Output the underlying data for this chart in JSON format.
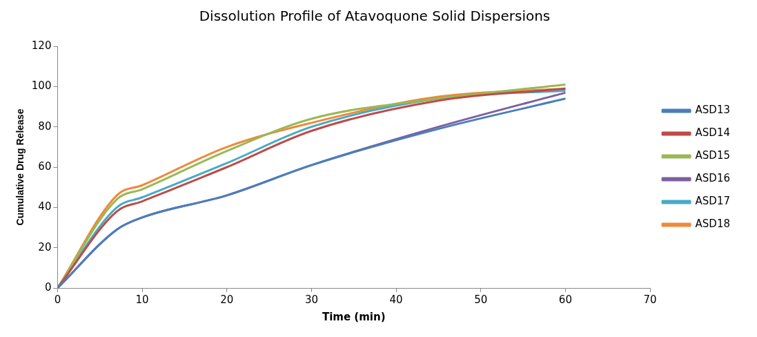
{
  "chart_data": {
    "type": "line",
    "title": "Dissolution Profile of Atavoquone Solid Dispersions",
    "xlabel": "Time (min)",
    "ylabel": "Cumulative Drug Release",
    "x": [
      0,
      7,
      10,
      20,
      30,
      45,
      60
    ],
    "xlim": [
      0,
      70
    ],
    "xticks": [
      0,
      10,
      20,
      30,
      40,
      50,
      60,
      70
    ],
    "ylim": [
      0,
      120
    ],
    "yticks": [
      0,
      20,
      40,
      60,
      80,
      100,
      120
    ],
    "grid": false,
    "legend": "right",
    "marker": "none",
    "line_style": "solid",
    "series": [
      {
        "name": "ASD13",
        "color": "#4a7ebb",
        "values": [
          0,
          29,
          35,
          46,
          61,
          79,
          94
        ]
      },
      {
        "name": "ASD14",
        "color": "#be4b48",
        "values": [
          0,
          38,
          43,
          60,
          78,
          93,
          99
        ]
      },
      {
        "name": "ASD15",
        "color": "#98b954",
        "values": [
          0,
          44,
          49,
          68,
          84,
          94,
          101
        ]
      },
      {
        "name": "ASD16",
        "color": "#7d60a0",
        "values": [
          0,
          29,
          35,
          46,
          61,
          80,
          97
        ]
      },
      {
        "name": "ASD17",
        "color": "#46aac5",
        "values": [
          0,
          40,
          45,
          62,
          80,
          94,
          98
        ]
      },
      {
        "name": "ASD18",
        "color": "#f0883a",
        "values": [
          0,
          46,
          51,
          70,
          82,
          95,
          99
        ]
      }
    ]
  }
}
